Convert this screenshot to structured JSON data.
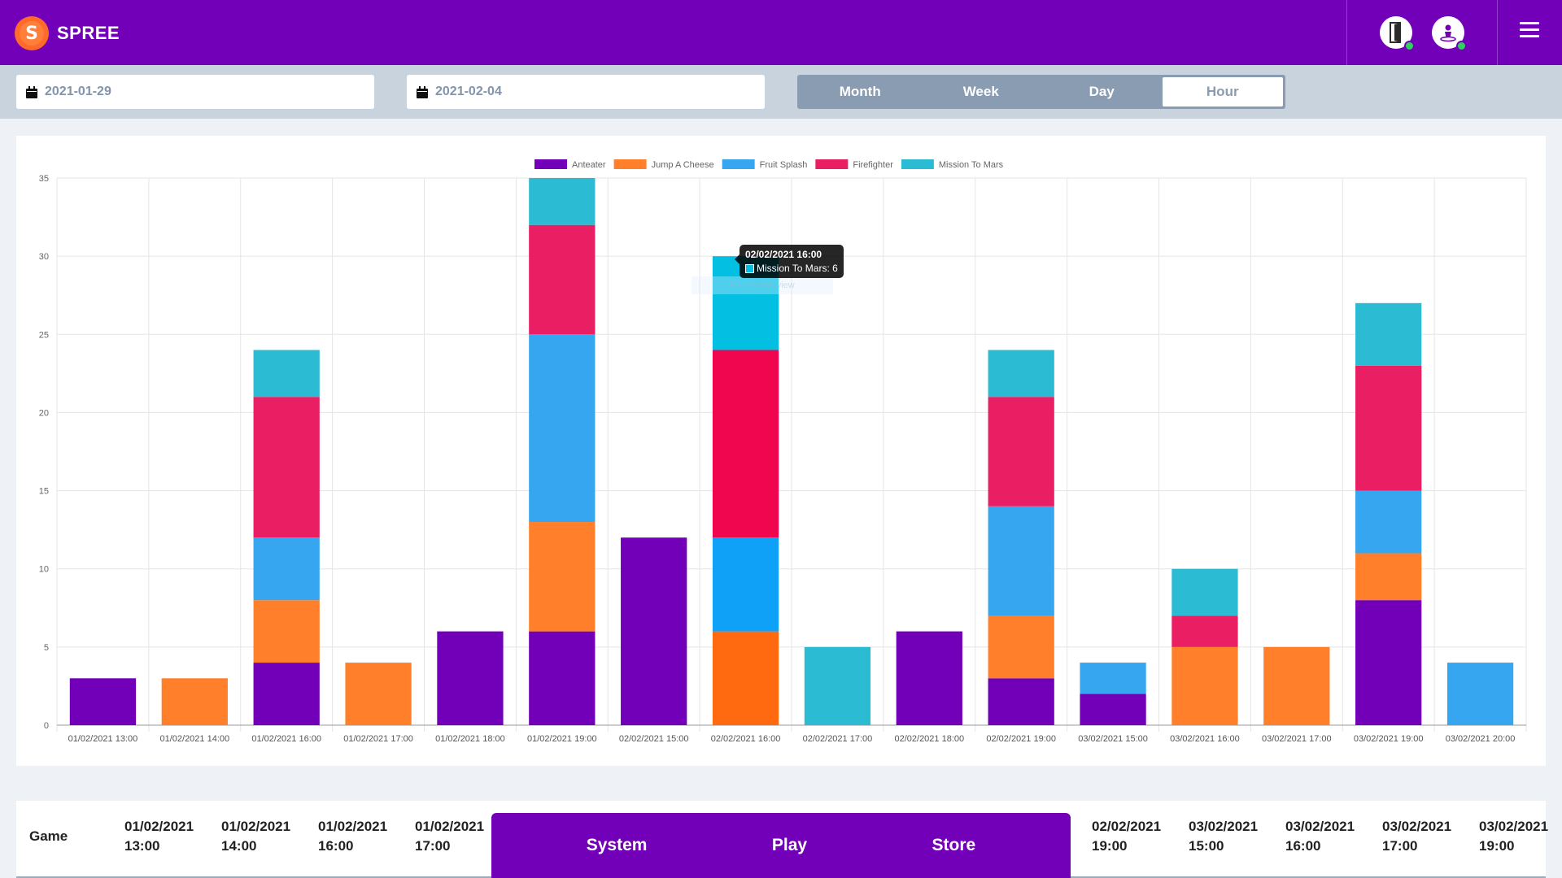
{
  "brand": {
    "logo_letter": "S",
    "name": "SPREE"
  },
  "header": {
    "icons": [
      "mobile-status-icon",
      "user-status-icon",
      "menu-icon"
    ],
    "status_color": "#2ed15c"
  },
  "filters": {
    "start_date": "2021-01-29",
    "end_date": "2021-02-04",
    "periods": [
      "Month",
      "Week",
      "Day",
      "Hour"
    ],
    "active_period": "Hour"
  },
  "colors": {
    "brand": "#7200b8",
    "accent": "#ff6a2b"
  },
  "chart_data": {
    "type": "bar",
    "stacked": true,
    "categories": [
      "01/02/2021 13:00",
      "01/02/2021 14:00",
      "01/02/2021 16:00",
      "01/02/2021 17:00",
      "01/02/2021 18:00",
      "01/02/2021 19:00",
      "02/02/2021 15:00",
      "02/02/2021 16:00",
      "02/02/2021 17:00",
      "02/02/2021 18:00",
      "02/02/2021 19:00",
      "03/02/2021 15:00",
      "03/02/2021 16:00",
      "03/02/2021 17:00",
      "03/02/2021 19:00",
      "03/02/2021 20:00"
    ],
    "series": [
      {
        "name": "Anteater",
        "color": "#7200b8",
        "values": [
          3,
          0,
          4,
          0,
          6,
          6,
          12,
          0,
          0,
          6,
          3,
          2,
          0,
          0,
          8,
          0
        ]
      },
      {
        "name": "Jump A Cheese",
        "color": "#ff7f2a",
        "values": [
          0,
          3,
          4,
          4,
          0,
          7,
          0,
          6,
          0,
          0,
          4,
          0,
          5,
          5,
          3,
          0
        ]
      },
      {
        "name": "Fruit Splash",
        "color": "#36a6f0",
        "values": [
          0,
          0,
          4,
          0,
          0,
          12,
          0,
          6,
          0,
          0,
          7,
          2,
          0,
          0,
          4,
          4
        ]
      },
      {
        "name": "Firefighter",
        "color": "#e91e63",
        "values": [
          0,
          0,
          9,
          0,
          0,
          7,
          0,
          12,
          0,
          0,
          7,
          0,
          2,
          0,
          8,
          0
        ]
      },
      {
        "name": "Mission To Mars",
        "color": "#2bbcd4",
        "values": [
          0,
          0,
          3,
          0,
          0,
          3,
          0,
          6,
          5,
          0,
          3,
          0,
          3,
          0,
          4,
          0
        ]
      }
    ],
    "yticks": [
      0,
      5,
      10,
      15,
      20,
      25,
      30,
      35
    ],
    "ylim": [
      0,
      35
    ],
    "grid": true,
    "legend_position": "top"
  },
  "tooltip": {
    "title": "02/02/2021 16:00",
    "label": "Mission To Mars: 6",
    "ghost": "Full-screen view"
  },
  "table": {
    "game_label": "Game",
    "columns": [
      {
        "date": "01/02/2021",
        "time": "13:00"
      },
      {
        "date": "01/02/2021",
        "time": "14:00"
      },
      {
        "date": "01/02/2021",
        "time": "16:00"
      },
      {
        "date": "01/02/2021",
        "time": "17:00"
      },
      {
        "date": "02/02/2021",
        "time": "19:00"
      },
      {
        "date": "03/02/2021",
        "time": "15:00"
      },
      {
        "date": "03/02/2021",
        "time": "16:00"
      },
      {
        "date": "03/02/2021",
        "time": "17:00"
      },
      {
        "date": "03/02/2021",
        "time": "19:00"
      }
    ]
  },
  "bottom_nav": {
    "items": [
      "System",
      "Play",
      "Store"
    ]
  }
}
